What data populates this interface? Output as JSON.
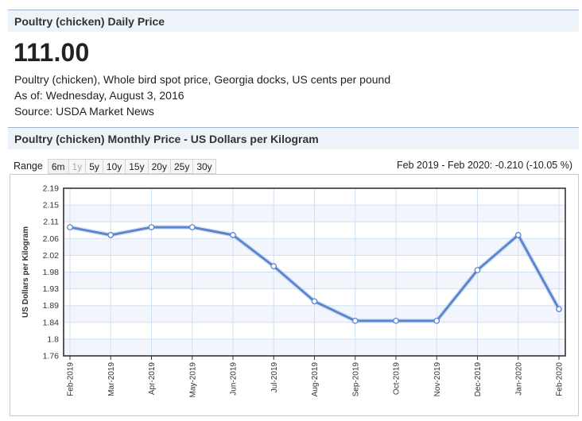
{
  "header": {
    "daily_title": "Poultry (chicken) Daily Price",
    "price": "111.00",
    "description": "Poultry (chicken), Whole bird spot price, Georgia docks, US cents per pound",
    "as_of": "As of: Wednesday, August 3, 2016",
    "source": "Source: USDA Market News",
    "monthly_title": "Poultry (chicken) Monthly Price - US Dollars per Kilogram"
  },
  "range": {
    "label": "Range",
    "options": [
      "6m",
      "1y",
      "5y",
      "10y",
      "15y",
      "20y",
      "25y",
      "30y"
    ],
    "change_text": "Feb 2019 - Feb 2020: -0.210 (-10.05 %)"
  },
  "colors": {
    "line": "#5b86cf",
    "plot_border": "#333333",
    "grid": "#cfe0f3",
    "band": "#f2f6fc"
  },
  "chart_data": {
    "type": "line",
    "ylabel": "US Dollars per Kilogram",
    "ylim": [
      1.76,
      2.19
    ],
    "yticks": [
      "2.19",
      "2.15",
      "2.11",
      "2.06",
      "2.02",
      "1.98",
      "1.93",
      "1.89",
      "1.84",
      "1.8",
      "1.76"
    ],
    "categories": [
      "Feb-2019",
      "Mar-2019",
      "Apr-2019",
      "May-2019",
      "Jun-2019",
      "Jul-2019",
      "Aug-2019",
      "Sep-2019",
      "Oct-2019",
      "Nov-2019",
      "Dec-2019",
      "Jan-2020",
      "Feb-2020"
    ],
    "series": [
      {
        "values": [
          2.09,
          2.07,
          2.09,
          2.09,
          2.07,
          1.99,
          1.9,
          1.85,
          1.85,
          1.85,
          1.98,
          2.07,
          1.88
        ]
      }
    ],
    "grid": true
  }
}
